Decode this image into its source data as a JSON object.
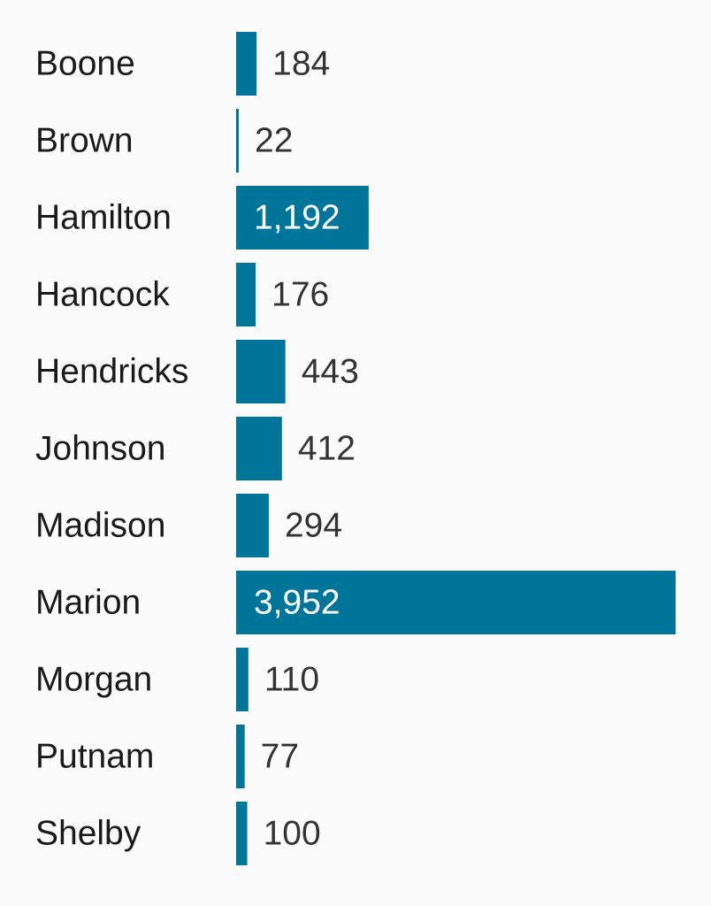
{
  "chart_data": {
    "type": "bar",
    "orientation": "horizontal",
    "categories": [
      "Boone",
      "Brown",
      "Hamilton",
      "Hancock",
      "Hendricks",
      "Johnson",
      "Madison",
      "Marion",
      "Morgan",
      "Putnam",
      "Shelby"
    ],
    "values": [
      184,
      22,
      1192,
      176,
      443,
      412,
      294,
      3952,
      110,
      77,
      100
    ],
    "value_labels": [
      "184",
      "22",
      "1,192",
      "176",
      "443",
      "412",
      "294",
      "3,952",
      "110",
      "77",
      "100"
    ],
    "title": "",
    "xlabel": "",
    "ylabel": "",
    "xlim": [
      0,
      3952
    ],
    "grid": false,
    "legend": "none",
    "bar_color": "#00759a",
    "inside_label_color": "#ffffff",
    "outside_label_color": "#333333",
    "category_label_color": "#1a1a1a"
  }
}
